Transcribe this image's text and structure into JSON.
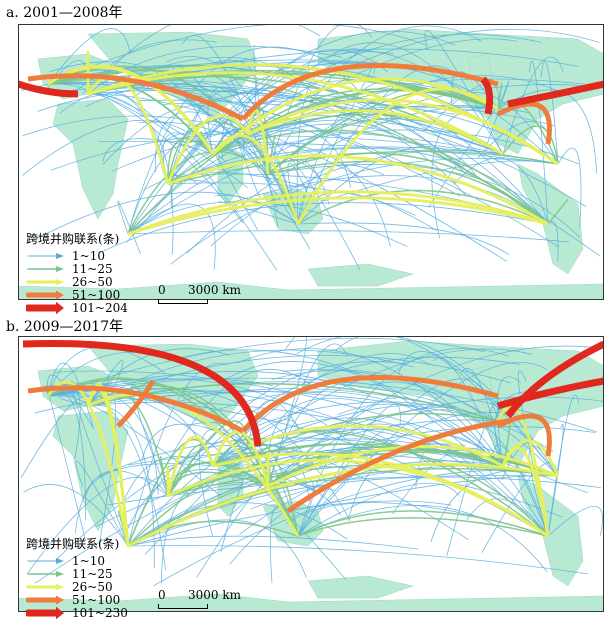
{
  "panels": [
    {
      "title": "a. 2001—2008年",
      "legend_title": "跨境并购联系(条)",
      "legend": [
        {
          "label": "1~10",
          "color": "#5aaede",
          "width": 1
        },
        {
          "label": "11~25",
          "color": "#7cc68a",
          "width": 1.5
        },
        {
          "label": "26~50",
          "color": "#e6ef5c",
          "width": 3
        },
        {
          "label": "51~100",
          "color": "#f07c3c",
          "width": 5
        },
        {
          "label": "101~204",
          "color": "#e0281e",
          "width": 7
        }
      ],
      "scale_zero": "0",
      "scale_label": "3000 km"
    },
    {
      "title": "b. 2009—2017年",
      "legend_title": "跨境并购联系(条)",
      "legend": [
        {
          "label": "1~10",
          "color": "#5aaede",
          "width": 1
        },
        {
          "label": "11~25",
          "color": "#7cc68a",
          "width": 1.5
        },
        {
          "label": "26~50",
          "color": "#e6ef5c",
          "width": 3
        },
        {
          "label": "51~100",
          "color": "#f07c3c",
          "width": 5
        },
        {
          "label": "101~230",
          "color": "#e0281e",
          "width": 7
        }
      ],
      "scale_zero": "0",
      "scale_label": "3000 km"
    }
  ]
}
